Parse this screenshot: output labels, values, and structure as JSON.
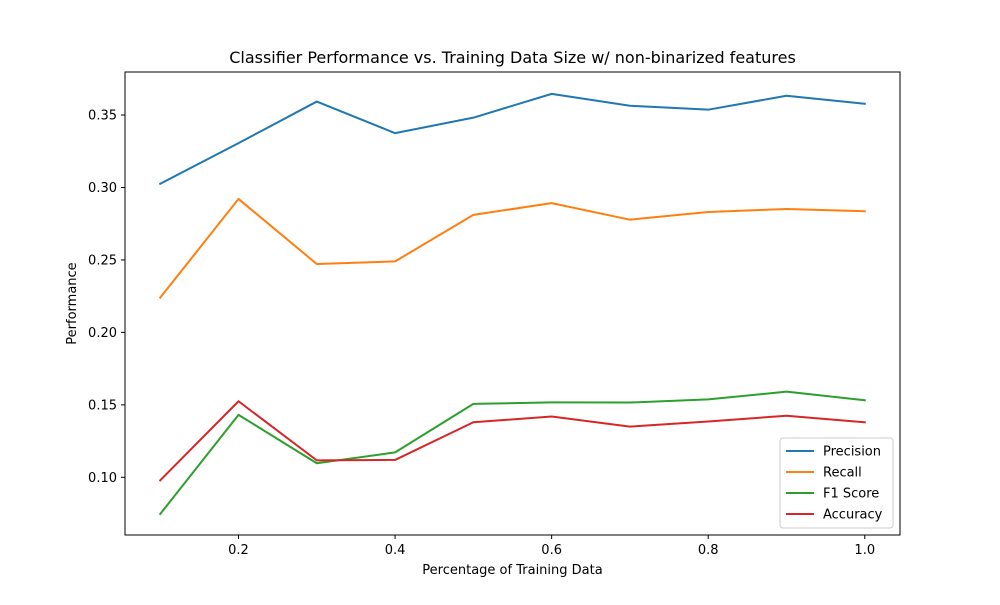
{
  "chart_data": {
    "type": "line",
    "title": "Classifier Performance vs. Training Data Size w/ non-binarized features",
    "xlabel": "Percentage of Training Data",
    "ylabel": "Performance",
    "x": [
      0.1,
      0.2,
      0.3,
      0.4,
      0.5,
      0.6,
      0.7,
      0.8,
      0.9,
      1.0
    ],
    "xlim": [
      0.055,
      1.045
    ],
    "ylim": [
      0.0602,
      0.3797
    ],
    "xticks": [
      0.2,
      0.4,
      0.6,
      0.8,
      1.0
    ],
    "xtick_labels": [
      "0.2",
      "0.4",
      "0.6",
      "0.8",
      "1.0"
    ],
    "yticks": [
      0.1,
      0.15,
      0.2,
      0.25,
      0.3,
      0.35
    ],
    "ytick_labels": [
      "0.10",
      "0.15",
      "0.20",
      "0.25",
      "0.30",
      "0.35"
    ],
    "grid": false,
    "legend_position": "lower-right",
    "series": [
      {
        "name": "Precision",
        "color": "#1f77b4",
        "values": [
          0.3026,
          0.3306,
          0.3593,
          0.3375,
          0.3482,
          0.3646,
          0.3564,
          0.3537,
          0.3633,
          0.3578
        ]
      },
      {
        "name": "Recall",
        "color": "#ff7f0e",
        "values": [
          0.224,
          0.2921,
          0.2472,
          0.249,
          0.2811,
          0.2892,
          0.2778,
          0.2831,
          0.2852,
          0.2836
        ]
      },
      {
        "name": "F1 Score",
        "color": "#2ca02c",
        "values": [
          0.0747,
          0.1431,
          0.1097,
          0.1172,
          0.1507,
          0.1517,
          0.1516,
          0.1538,
          0.1591,
          0.1532
        ]
      },
      {
        "name": "Accuracy",
        "color": "#d62728",
        "values": [
          0.0979,
          0.1525,
          0.1117,
          0.112,
          0.138,
          0.142,
          0.135,
          0.1385,
          0.1425,
          0.138
        ]
      }
    ]
  }
}
